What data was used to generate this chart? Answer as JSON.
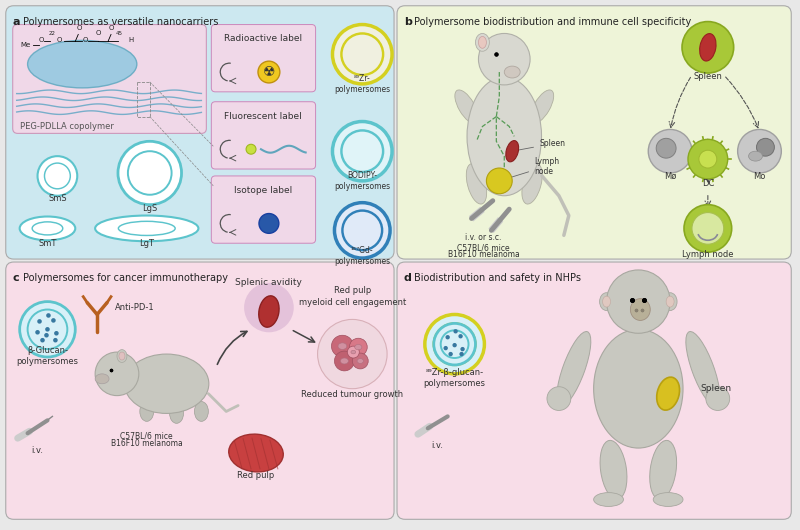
{
  "panel_a_title": "Polymersomes as versatile nanocarriers",
  "panel_b_title": "Polymersome biodistribution and immune cell specificity",
  "panel_c_title": "Polymersomes for cancer immunotherapy",
  "panel_d_title": "Biodistribution and safety in NHPs",
  "panel_a_bg": "#cce8f0",
  "panel_b_bg": "#eef4d8",
  "panel_c_bg": "#f8dde8",
  "panel_d_bg": "#f8dde8",
  "panel_inner_a_bg": "#f0d8e8",
  "label_box_bg": "#f0d8e8",
  "outer_bg": "#e8e8e8",
  "cyan_ring": "#5cc4cc",
  "yellow_ring": "#d4d020",
  "blue_ring": "#3080b8",
  "green_bg": "#a8c840",
  "gray_cell": "#b8b8b8",
  "red_organ": "#b03030",
  "purple_glow": "#906090"
}
